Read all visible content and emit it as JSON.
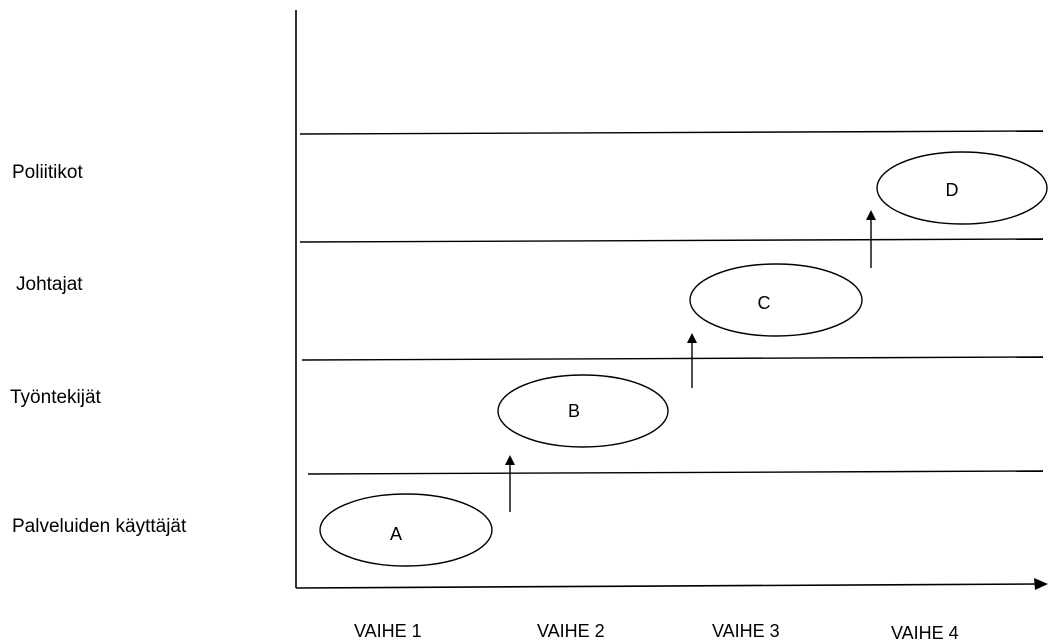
{
  "rows": [
    {
      "label": "Poliitikot"
    },
    {
      "label": "Johtajat"
    },
    {
      "label": "Työntekijät"
    },
    {
      "label": "Palveluiden käyttäjät"
    }
  ],
  "stages": [
    {
      "label": "VAIHE 1"
    },
    {
      "label": "VAIHE 2"
    },
    {
      "label": "VAIHE 3"
    },
    {
      "label": "VAIHE 4"
    }
  ],
  "nodes": [
    {
      "label": "A"
    },
    {
      "label": "B"
    },
    {
      "label": "C"
    },
    {
      "label": "D"
    }
  ],
  "arrows": [
    {
      "from": "A",
      "to": "B"
    },
    {
      "from": "B",
      "to": "C"
    },
    {
      "from": "C",
      "to": "D"
    }
  ]
}
